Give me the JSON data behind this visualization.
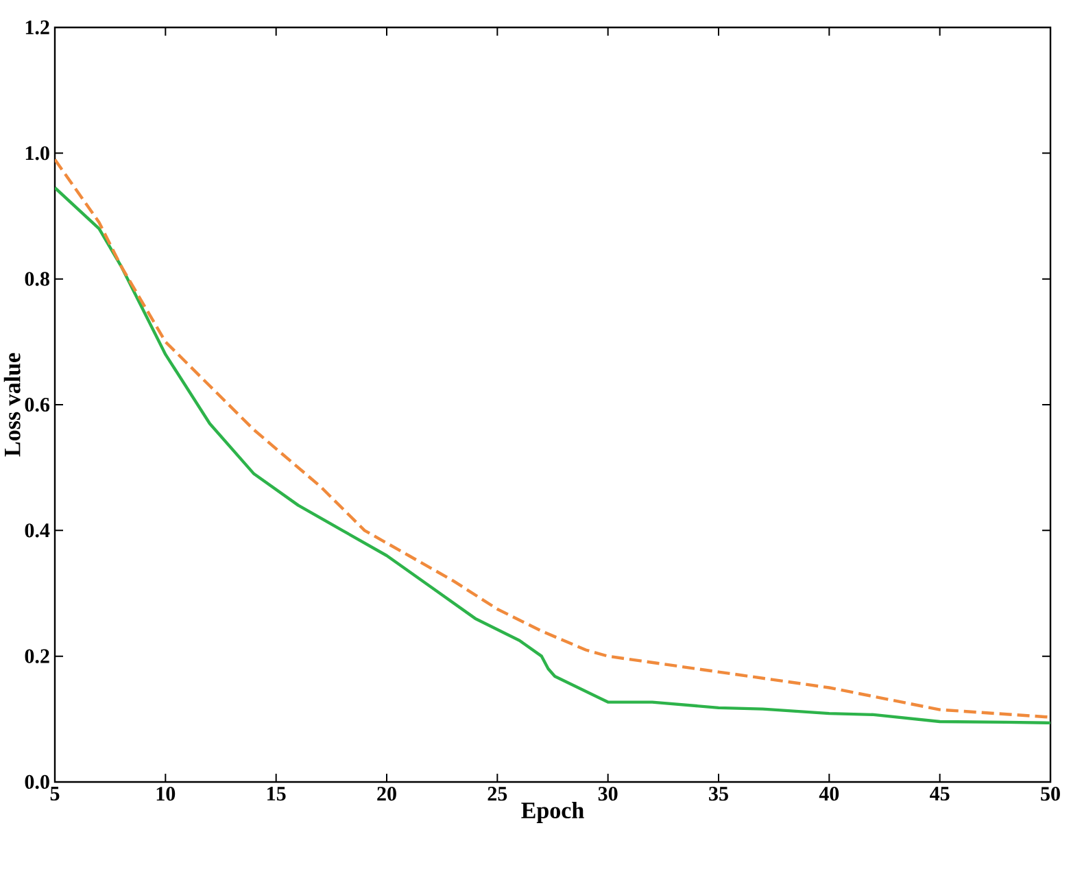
{
  "chart_data": {
    "type": "line",
    "xlabel": "Epoch",
    "ylabel": "Loss value",
    "xlim": [
      5,
      50
    ],
    "ylim": [
      0,
      1.2
    ],
    "xticks": [
      5,
      10,
      15,
      20,
      25,
      30,
      35,
      40,
      45,
      50
    ],
    "yticks": [
      {
        "value": 0,
        "label": "0.0"
      },
      {
        "value": 0.2,
        "label": "0.2"
      },
      {
        "value": 0.4,
        "label": "0.4"
      },
      {
        "value": 0.6,
        "label": "0.6"
      },
      {
        "value": 0.8,
        "label": "0.8"
      },
      {
        "value": 1.0,
        "label": "1.0"
      },
      {
        "value": 1.2,
        "label": "1.2"
      }
    ],
    "grid": false,
    "marker": "none",
    "series": [
      {
        "color": "#2db34a",
        "line_style": "solid",
        "x": [
          5,
          7,
          8,
          10,
          12,
          14,
          16,
          18,
          20,
          22,
          24,
          26,
          27,
          27.3,
          27.6,
          30,
          32,
          35,
          37,
          40,
          42,
          45,
          48,
          50
        ],
        "values": [
          0.945,
          0.88,
          0.82,
          0.68,
          0.57,
          0.49,
          0.44,
          0.4,
          0.36,
          0.31,
          0.26,
          0.225,
          0.2,
          0.18,
          0.168,
          0.127,
          0.127,
          0.118,
          0.116,
          0.109,
          0.107,
          0.096,
          0.095,
          0.094
        ]
      },
      {
        "color": "#f08a3c",
        "line_style": "dashed",
        "x": [
          5,
          7,
          8,
          10,
          12,
          14,
          17,
          19,
          21,
          23,
          25,
          27,
          29,
          30,
          35,
          40,
          45,
          50
        ],
        "values": [
          0.99,
          0.89,
          0.82,
          0.7,
          0.63,
          0.56,
          0.47,
          0.4,
          0.36,
          0.32,
          0.275,
          0.24,
          0.21,
          0.2,
          0.175,
          0.15,
          0.115,
          0.103
        ]
      }
    ]
  }
}
